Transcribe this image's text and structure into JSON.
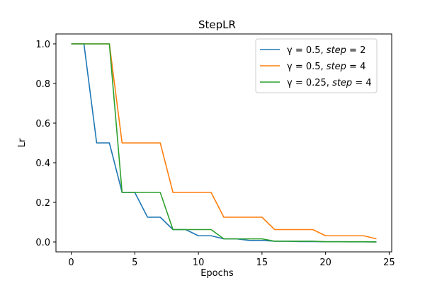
{
  "chart_data": {
    "type": "line",
    "title": "StepLR",
    "xlabel": "Epochs",
    "ylabel": "Lr",
    "xlim": [
      -1.2,
      25.2
    ],
    "ylim": [
      -0.05,
      1.05
    ],
    "xticks": [
      0,
      5,
      10,
      15,
      20,
      25
    ],
    "yticks": [
      0.0,
      0.2,
      0.4,
      0.6,
      0.8,
      1.0
    ],
    "xtick_labels": [
      "0",
      "5",
      "10",
      "15",
      "20",
      "25"
    ],
    "ytick_labels": [
      "0.0",
      "0.2",
      "0.4",
      "0.6",
      "0.8",
      "1.0"
    ],
    "grid": false,
    "legend_position": "top-right",
    "x": [
      0,
      1,
      2,
      3,
      4,
      5,
      6,
      7,
      8,
      9,
      10,
      11,
      12,
      13,
      14,
      15,
      16,
      17,
      18,
      19,
      20,
      21,
      22,
      23,
      24
    ],
    "series": [
      {
        "name": "γ = 0.5, step = 2",
        "legend_main": "γ = 0.5, ",
        "legend_italic": "step",
        "legend_tail": " = 2",
        "color": "#1f77b4",
        "values": [
          1.0,
          1.0,
          0.5,
          0.5,
          0.25,
          0.25,
          0.125,
          0.125,
          0.0625,
          0.0625,
          0.03125,
          0.03125,
          0.015625,
          0.015625,
          0.0078125,
          0.0078125,
          0.00390625,
          0.00390625,
          0.001953125,
          0.001953125,
          0.0009765625,
          0.0009765625,
          0.00048828125,
          0.00048828125,
          0.000244140625
        ]
      },
      {
        "name": "γ = 0.5, step = 4",
        "legend_main": "γ = 0.5, ",
        "legend_italic": "step",
        "legend_tail": " = 4",
        "color": "#ff7f0e",
        "values": [
          1.0,
          1.0,
          1.0,
          1.0,
          0.5,
          0.5,
          0.5,
          0.5,
          0.25,
          0.25,
          0.25,
          0.25,
          0.125,
          0.125,
          0.125,
          0.125,
          0.0625,
          0.0625,
          0.0625,
          0.0625,
          0.03125,
          0.03125,
          0.03125,
          0.03125,
          0.015625
        ]
      },
      {
        "name": "γ = 0.25, step = 4",
        "legend_main": "γ = 0.25, ",
        "legend_italic": "step",
        "legend_tail": " = 4",
        "color": "#2ca02c",
        "values": [
          1.0,
          1.0,
          1.0,
          1.0,
          0.25,
          0.25,
          0.25,
          0.25,
          0.0625,
          0.0625,
          0.0625,
          0.0625,
          0.015625,
          0.015625,
          0.015625,
          0.015625,
          0.00390625,
          0.00390625,
          0.00390625,
          0.00390625,
          0.0009765625,
          0.0009765625,
          0.0009765625,
          0.0009765625,
          0.000244140625
        ]
      }
    ]
  }
}
